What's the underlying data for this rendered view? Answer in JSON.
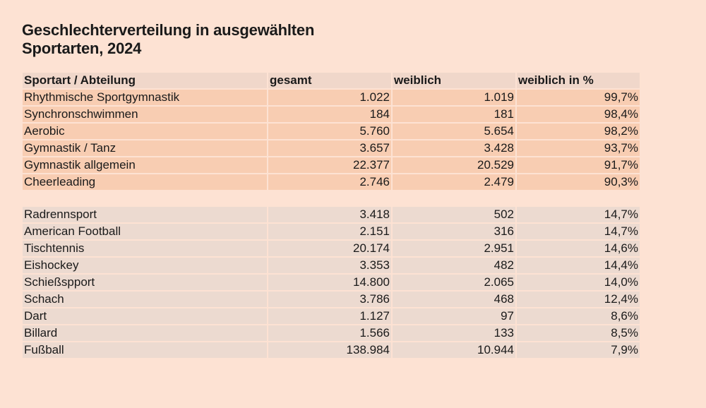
{
  "title": {
    "line1": "Geschlechterverteilung in ausgewählten",
    "line2": "Sportarten, 2024"
  },
  "table": {
    "headers": [
      "Sportart  / Abteilung",
      "gesamt",
      "weiblich",
      "weiblich in %"
    ],
    "group_high": [
      [
        "Rhythmische Sportgymnastik",
        "1.022",
        "1.019",
        "99,7%"
      ],
      [
        "Synchronschwimmen",
        "184",
        "181",
        "98,4%"
      ],
      [
        "Aerobic",
        "5.760",
        "5.654",
        "98,2%"
      ],
      [
        "Gymnastik  / Tanz",
        "3.657",
        "3.428",
        "93,7%"
      ],
      [
        "Gymnastik allgemein",
        "22.377",
        "20.529",
        "91,7%"
      ],
      [
        "Cheerleading",
        "2.746",
        "2.479",
        "90,3%"
      ]
    ],
    "group_low": [
      [
        "Radrennsport",
        "3.418",
        "502",
        "14,7%"
      ],
      [
        "American Football",
        "2.151",
        "316",
        "14,7%"
      ],
      [
        "Tischtennis",
        "20.174",
        "2.951",
        "14,6%"
      ],
      [
        "Eishockey",
        "3.353",
        "482",
        "14,4%"
      ],
      [
        "Schießspport",
        "14.800",
        "2.065",
        "14,0%"
      ],
      [
        "Schach",
        "3.786",
        "468",
        "12,4%"
      ],
      [
        "Dart",
        "1.127",
        "97",
        "8,6%"
      ],
      [
        "Billard",
        "1.566",
        "133",
        "8,5%"
      ],
      [
        "Fußball",
        "138.984",
        "10.944",
        "7,9%"
      ]
    ]
  },
  "colors": {
    "background": "#fde2d3",
    "header_row": "#f0d7ca",
    "high_share_rows": "#f8cdb2",
    "low_share_rows": "#ecdad0"
  }
}
